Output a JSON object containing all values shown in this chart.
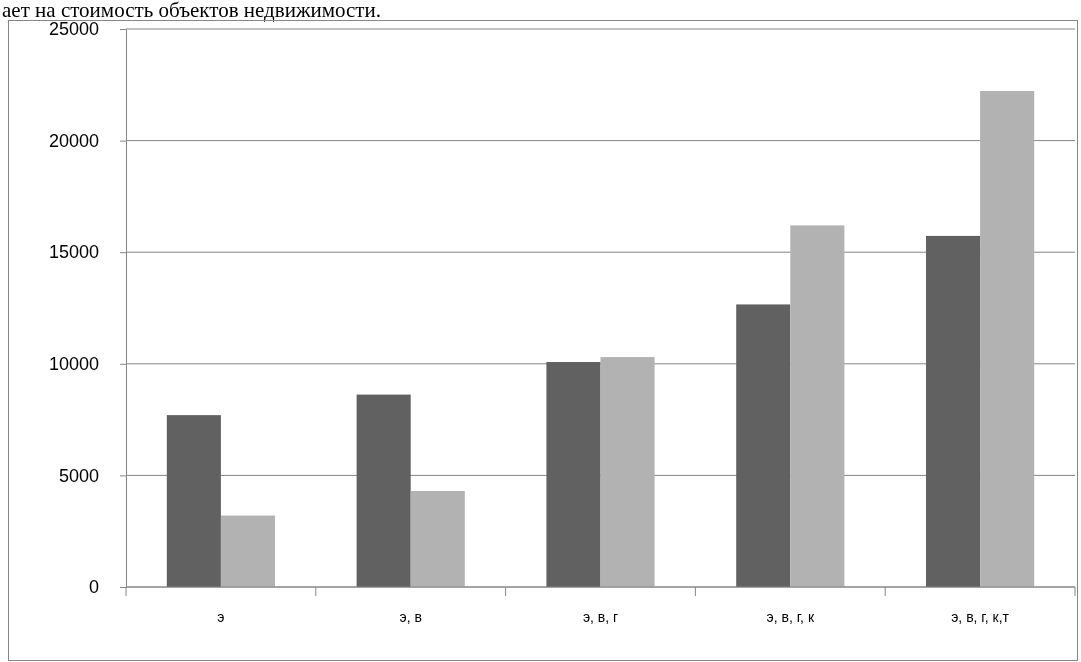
{
  "chart_data": {
    "type": "bar",
    "annotations": [
      "ает на стоимость объектов недвижимости."
    ],
    "categories": [
      "э",
      "э, в",
      "э, в, г",
      "э, в, г, к",
      "э, в, г, к,т"
    ],
    "series": [
      {
        "color": "#616161",
        "values": [
          7700,
          8620,
          10080,
          12660,
          15730
        ]
      },
      {
        "color": "#b2b2b2",
        "values": [
          3200,
          4300,
          10300,
          16200,
          22220
        ]
      }
    ],
    "ylim": [
      0,
      25000
    ],
    "yticks": [
      0,
      5000,
      10000,
      15000,
      20000,
      25000
    ],
    "grid": "y"
  }
}
